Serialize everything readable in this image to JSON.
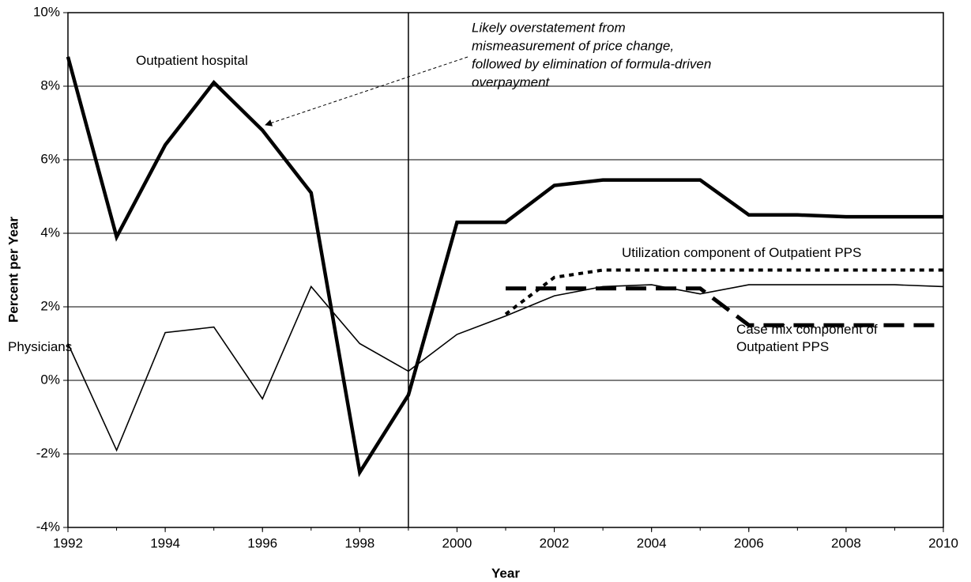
{
  "chart_data": {
    "type": "line",
    "y_axis_label": "Percent per Year",
    "x_axis_label": "Year",
    "x": [
      1992,
      1993,
      1994,
      1995,
      1996,
      1997,
      1998,
      1999,
      2000,
      2001,
      2002,
      2003,
      2004,
      2005,
      2006,
      2007,
      2008,
      2009,
      2010
    ],
    "series": [
      {
        "name": "Outpatient hospital",
        "color": "#000000",
        "style": "thick",
        "values": [
          8.8,
          3.9,
          6.4,
          8.1,
          6.8,
          5.1,
          -2.5,
          -0.4,
          4.3,
          4.3,
          5.3,
          5.45,
          5.45,
          5.45,
          4.5,
          4.5,
          4.45,
          4.45,
          4.45
        ]
      },
      {
        "name": "Physicians",
        "color": "#000000",
        "style": "thin",
        "values": [
          1.0,
          -1.9,
          1.3,
          1.45,
          -0.5,
          2.55,
          1.0,
          0.25,
          1.25,
          1.75,
          2.3,
          2.55,
          2.6,
          2.35,
          2.6,
          2.6,
          2.6,
          2.6,
          2.55
        ]
      },
      {
        "name": "Utilization component of Outpatient PPS",
        "color": "#000000",
        "style": "dotted",
        "values": [
          null,
          null,
          null,
          null,
          null,
          null,
          null,
          null,
          null,
          1.8,
          2.8,
          3.0,
          3.0,
          3.0,
          3.0,
          3.0,
          3.0,
          3.0,
          3.0
        ]
      },
      {
        "name": "Case mix component of Outpatient PPS",
        "color": "#000000",
        "style": "dashed",
        "values": [
          null,
          null,
          null,
          null,
          null,
          null,
          null,
          null,
          null,
          2.5,
          2.5,
          2.5,
          2.5,
          2.5,
          1.5,
          1.5,
          1.5,
          1.5,
          1.5
        ]
      }
    ],
    "reference_line_x": 1999,
    "annotation": [
      "Likely overstatement from",
      "mismeasurement of price change,",
      "followed by elimination of formula-driven",
      "overpayment"
    ],
    "xlim": [
      1992,
      2010
    ],
    "xticks": [
      1992,
      1994,
      1996,
      1998,
      2000,
      2002,
      2004,
      2006,
      2008,
      2010
    ],
    "ylim": [
      -4,
      10
    ],
    "yticks": [
      {
        "value": -4,
        "label": "-4%"
      },
      {
        "value": -2,
        "label": "-2%"
      },
      {
        "value": 0,
        "label": "0%"
      },
      {
        "value": 2,
        "label": "2%"
      },
      {
        "value": 4,
        "label": "4%"
      },
      {
        "value": 6,
        "label": "6%"
      },
      {
        "value": 8,
        "label": "8%"
      },
      {
        "value": 10,
        "label": "10%"
      }
    ],
    "grid": true
  }
}
